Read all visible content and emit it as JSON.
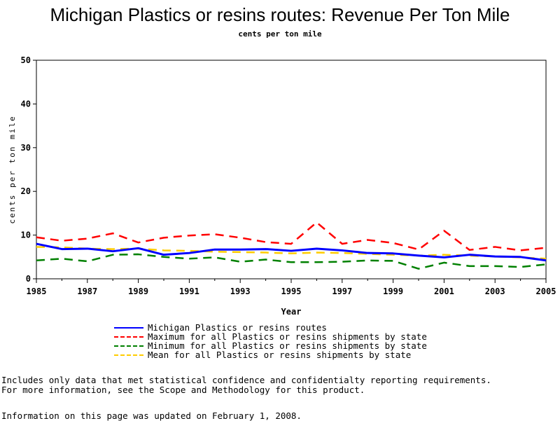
{
  "chart_data": {
    "type": "line",
    "title": "Michigan Plastics or resins routes: Revenue Per Ton Mile",
    "subtitle": "cents per ton mile",
    "xlabel": "Year",
    "ylabel": "cents per ton mile",
    "xlim": [
      1985,
      2005
    ],
    "ylim": [
      0,
      50
    ],
    "x_ticks": [
      1985,
      1987,
      1989,
      1991,
      1993,
      1995,
      1997,
      1999,
      2001,
      2003,
      2005
    ],
    "y_ticks": [
      0,
      10,
      20,
      30,
      40,
      50
    ],
    "grid": false,
    "legend_position": "bottom",
    "x": [
      1985,
      1986,
      1987,
      1988,
      1989,
      1990,
      1991,
      1992,
      1993,
      1994,
      1995,
      1996,
      1997,
      1998,
      1999,
      2000,
      2001,
      2002,
      2003,
      2004,
      2005
    ],
    "series": [
      {
        "name": "Michigan Plastics or resins routes",
        "color": "#0000ff",
        "style": "solid",
        "values": [
          8.0,
          6.8,
          6.9,
          6.3,
          7.0,
          5.5,
          5.9,
          6.7,
          6.7,
          6.8,
          6.4,
          6.9,
          6.5,
          5.9,
          5.8,
          5.3,
          4.9,
          5.5,
          5.1,
          5.0,
          4.2
        ]
      },
      {
        "name": "Maximum for all Plastics or resins shipments by state",
        "color": "#ff0000",
        "style": "dashed",
        "values": [
          9.5,
          8.7,
          9.2,
          10.4,
          8.3,
          9.4,
          9.9,
          10.2,
          9.4,
          8.4,
          8.0,
          12.9,
          8.0,
          8.9,
          8.2,
          6.7,
          11.0,
          6.6,
          7.3,
          6.5,
          7.1
        ]
      },
      {
        "name": "Minimum for all Plastics or resins shipments by state",
        "color": "#008000",
        "style": "dashed",
        "values": [
          4.2,
          4.6,
          4.0,
          5.5,
          5.6,
          5.0,
          4.6,
          4.9,
          3.9,
          4.4,
          3.8,
          3.8,
          3.9,
          4.2,
          4.1,
          2.3,
          3.7,
          2.9,
          2.9,
          2.7,
          3.3
        ]
      },
      {
        "name": "Mean for all Plastics or resins shipments by state",
        "color": "#ffcc00",
        "style": "dashed",
        "values": [
          7.3,
          7.2,
          6.9,
          6.8,
          6.9,
          6.5,
          6.4,
          6.2,
          6.1,
          6.0,
          5.8,
          6.0,
          5.9,
          5.7,
          5.5,
          5.3,
          5.5,
          5.3,
          5.1,
          4.9,
          4.6
        ]
      }
    ]
  },
  "footnotes": [
    "Includes only data that met statistical confidence and confidentialty reporting requirements.",
    "For more information, see the Scope and Methodology for this product."
  ],
  "updated_note": "Information on this page was updated on February 1, 2008."
}
